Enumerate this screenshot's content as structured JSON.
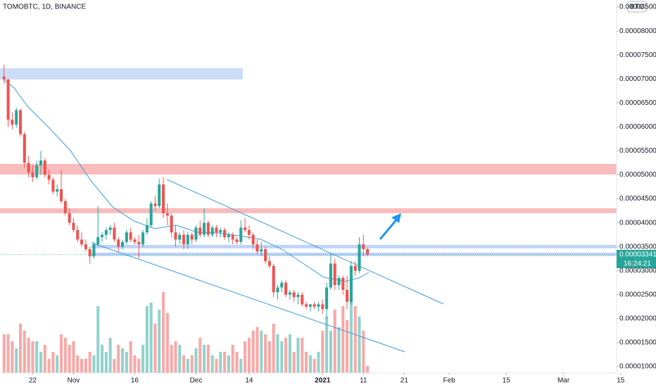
{
  "chart_data": {
    "type": "candlestick",
    "title": "TOMOBTC, 1D, BINANCE",
    "currency": "BTC",
    "countdown": "16:24:21",
    "up_color": "#26a69a",
    "down_color": "#ef5350",
    "xlim": [
      -1,
      150
    ],
    "xticks": [
      {
        "value": 7,
        "label": "22"
      },
      {
        "value": 17,
        "label": "Nov"
      },
      {
        "value": 32,
        "label": "16"
      },
      {
        "value": 47,
        "label": "Dec"
      },
      {
        "value": 60,
        "label": "14"
      },
      {
        "value": 78,
        "label": "2021"
      },
      {
        "value": 88,
        "label": "11"
      },
      {
        "value": 98,
        "label": "21"
      },
      {
        "value": 109,
        "label": "Feb"
      },
      {
        "value": 123,
        "label": "15"
      },
      {
        "value": 137,
        "label": "Mar"
      },
      {
        "value": 151,
        "label": "15"
      }
    ],
    "ylim": [
      8.68e-06,
      8.648e-05
    ],
    "yticks": [
      {
        "value": 1e-05,
        "label": "0.00001000"
      },
      {
        "value": 1.5e-05,
        "label": "0.00001500"
      },
      {
        "value": 2e-05,
        "label": "0.00002000"
      },
      {
        "value": 2.5e-05,
        "label": "0.00002500"
      },
      {
        "value": 3e-05,
        "label": "0.00003000"
      },
      {
        "value": 3.5e-05,
        "label": "0.00003500"
      },
      {
        "value": 4e-05,
        "label": "0.00004000"
      },
      {
        "value": 4.5e-05,
        "label": "0.00004500"
      },
      {
        "value": 5e-05,
        "label": "0.00005000"
      },
      {
        "value": 5.5e-05,
        "label": "0.00005500"
      },
      {
        "value": 6e-05,
        "label": "0.00006000"
      },
      {
        "value": 6.5e-05,
        "label": "0.00006500"
      },
      {
        "value": 7e-05,
        "label": "0.00007000"
      },
      {
        "value": 7.5e-05,
        "label": "0.00007500"
      },
      {
        "value": 8e-05,
        "label": "0.00008000"
      },
      {
        "value": 8.5e-05,
        "label": "0.00008500"
      }
    ],
    "volume_lim": [
      0,
      530
    ],
    "open": [
      7.05e-05,
      6.99e-05,
      6.15e-05,
      6.05e-05,
      6.35e-05,
      5.85e-05,
      5.25e-05,
      5.05e-05,
      4.95e-05,
      5.2e-05,
      5.3e-05,
      5e-05,
      4.9e-05,
      4.65e-05,
      4.7e-05,
      4.45e-05,
      4.2e-05,
      4e-05,
      3.85e-05,
      3.65e-05,
      3.55e-05,
      3.45e-05,
      3.3e-05,
      3.55e-05,
      3.7e-05,
      3.75e-05,
      3.85e-05,
      3.9e-05,
      3.65e-05,
      3.5e-05,
      3.6e-05,
      3.8e-05,
      3.65e-05,
      3.6e-05,
      3.55e-05,
      3.8e-05,
      3.95e-05,
      4.4e-05,
      4.35e-05,
      4.8e-05,
      4.2e-05,
      4.15e-05,
      3.8e-05,
      3.65e-05,
      3.75e-05,
      3.55e-05,
      3.75e-05,
      3.65e-05,
      3.9e-05,
      3.75e-05,
      4e-05,
      3.75e-05,
      3.9e-05,
      3.8e-05,
      3.85e-05,
      3.7e-05,
      3.75e-05,
      3.65e-05,
      3.6e-05,
      3.9e-05,
      3.85e-05,
      3.75e-05,
      3.55e-05,
      3.4e-05,
      3.45e-05,
      3.2e-05,
      3.1e-05,
      2.55e-05,
      2.65e-05,
      2.75e-05,
      2.5e-05,
      2.55e-05,
      2.45e-05,
      2.5e-05,
      2.3e-05,
      2.25e-05,
      2.3e-05,
      2.25e-05,
      2.3e-05,
      2.2e-05,
      2.65e-05,
      3.15e-05,
      2.7e-05,
      2.85e-05,
      2.6e-05,
      2.35e-05,
      3.1e-05,
      3e-05,
      3.55e-05,
      3.45e-05
    ],
    "high": [
      7.3e-05,
      7e-05,
      6.3e-05,
      6.4e-05,
      6.38e-05,
      5.9e-05,
      5.4e-05,
      5.2e-05,
      5.3e-05,
      5.5e-05,
      5.35e-05,
      5.1e-05,
      4.95e-05,
      4.8e-05,
      5.1e-05,
      4.5e-05,
      4.3e-05,
      4.1e-05,
      3.95e-05,
      3.8e-05,
      3.65e-05,
      3.5e-05,
      3.6e-05,
      4.35e-05,
      3.8e-05,
      3.9e-05,
      3.95e-05,
      4e-05,
      3.7e-05,
      3.65e-05,
      3.85e-05,
      3.9e-05,
      3.7e-05,
      3.75e-05,
      3.85e-05,
      4.1e-05,
      4.45e-05,
      4.55e-05,
      4.92e-05,
      4.95e-05,
      4.4e-05,
      4.2e-05,
      3.95e-05,
      3.8e-05,
      3.85e-05,
      3.8e-05,
      3.8e-05,
      3.95e-05,
      4.05e-05,
      4.3e-05,
      4.05e-05,
      3.95e-05,
      3.95e-05,
      3.9e-05,
      3.9e-05,
      3.8e-05,
      3.8e-05,
      3.7e-05,
      4.05e-05,
      4.1e-05,
      3.95e-05,
      3.8e-05,
      3.65e-05,
      3.6e-05,
      3.5e-05,
      3.3e-05,
      3.15e-05,
      2.7e-05,
      2.8e-05,
      2.8e-05,
      2.6e-05,
      2.6e-05,
      2.55e-05,
      2.55e-05,
      2.35e-05,
      2.3e-05,
      2.35e-05,
      2.35e-05,
      2.4e-05,
      2.75e-05,
      3.35e-05,
      3.25e-05,
      2.9e-05,
      2.9e-05,
      2.9e-05,
      3.2e-05,
      3.2e-05,
      3.7e-05,
      3.75e-05,
      3.48e-05
    ],
    "low": [
      6.9e-05,
      6e-05,
      5.95e-05,
      5.98e-05,
      5.8e-05,
      5.15e-05,
      4.95e-05,
      4.85e-05,
      4.9e-05,
      5e-05,
      4.95e-05,
      4.8e-05,
      4.6e-05,
      4.55e-05,
      4.4e-05,
      4.15e-05,
      3.95e-05,
      3.8e-05,
      3.6e-05,
      3.5e-05,
      3.4e-05,
      3.15e-05,
      3.25e-05,
      3.5e-05,
      3.6e-05,
      3.65e-05,
      3.75e-05,
      3.6e-05,
      3.4e-05,
      3.45e-05,
      3.55e-05,
      3.6e-05,
      3.55e-05,
      3.25e-05,
      3.5e-05,
      3.75e-05,
      3.9e-05,
      4.25e-05,
      4.3e-05,
      4.1e-05,
      3.95e-05,
      3.7e-05,
      3.5e-05,
      3.55e-05,
      3.45e-05,
      3.45e-05,
      3.55e-05,
      3.6e-05,
      3.7e-05,
      3.7e-05,
      3.7e-05,
      3.7e-05,
      3.7e-05,
      3.7e-05,
      3.65e-05,
      3.6e-05,
      3.55e-05,
      3.55e-05,
      3.55e-05,
      3.8e-05,
      3.65e-05,
      3.45e-05,
      3.35e-05,
      3.3e-05,
      3.15e-05,
      3.05e-05,
      2.45e-05,
      2.4e-05,
      2.55e-05,
      2.45e-05,
      2.4e-05,
      2.35e-05,
      2.3e-05,
      2.25e-05,
      2.2e-05,
      2.15e-05,
      2.2e-05,
      2.15e-05,
      2.1e-05,
      2e-05,
      2.6e-05,
      2.6e-05,
      2.6e-05,
      2.5e-05,
      2.2e-05,
      2.3e-05,
      2.9e-05,
      2.95e-05,
      3.3e-05,
      3.3e-05
    ],
    "close": [
      6.99e-05,
      6.15e-05,
      6.05e-05,
      6.35e-05,
      5.85e-05,
      5.25e-05,
      5.05e-05,
      4.95e-05,
      5.2e-05,
      5.3e-05,
      5e-05,
      4.9e-05,
      4.65e-05,
      4.7e-05,
      4.45e-05,
      4.2e-05,
      4e-05,
      3.85e-05,
      3.65e-05,
      3.55e-05,
      3.45e-05,
      3.3e-05,
      3.55e-05,
      3.7e-05,
      3.75e-05,
      3.85e-05,
      3.9e-05,
      3.65e-05,
      3.5e-05,
      3.6e-05,
      3.8e-05,
      3.65e-05,
      3.6e-05,
      3.55e-05,
      3.8e-05,
      3.95e-05,
      4.4e-05,
      4.35e-05,
      4.8e-05,
      4.2e-05,
      4.15e-05,
      3.8e-05,
      3.65e-05,
      3.75e-05,
      3.55e-05,
      3.75e-05,
      3.65e-05,
      3.9e-05,
      3.75e-05,
      4e-05,
      3.75e-05,
      3.9e-05,
      3.8e-05,
      3.85e-05,
      3.7e-05,
      3.75e-05,
      3.65e-05,
      3.6e-05,
      3.9e-05,
      3.85e-05,
      3.75e-05,
      3.55e-05,
      3.4e-05,
      3.45e-05,
      3.2e-05,
      3.1e-05,
      2.55e-05,
      2.65e-05,
      2.75e-05,
      2.5e-05,
      2.55e-05,
      2.45e-05,
      2.5e-05,
      2.3e-05,
      2.25e-05,
      2.3e-05,
      2.25e-05,
      2.3e-05,
      2.2e-05,
      2.65e-05,
      3.15e-05,
      2.7e-05,
      2.85e-05,
      2.6e-05,
      2.35e-05,
      3.1e-05,
      3e-05,
      3.55e-05,
      3.45e-05,
      3.341e-05
    ],
    "volume": [
      55,
      55,
      45,
      35,
      70,
      60,
      50,
      45,
      45,
      30,
      40,
      20,
      30,
      25,
      55,
      50,
      40,
      45,
      25,
      20,
      20,
      30,
      25,
      95,
      40,
      30,
      50,
      20,
      40,
      35,
      30,
      45,
      25,
      20,
      40,
      95,
      100,
      70,
      90,
      115,
      85,
      40,
      45,
      40,
      25,
      20,
      25,
      35,
      50,
      40,
      40,
      25,
      20,
      30,
      30,
      25,
      40,
      30,
      20,
      45,
      50,
      60,
      65,
      60,
      55,
      45,
      70,
      55,
      45,
      50,
      55,
      30,
      50,
      50,
      30,
      25,
      20,
      30,
      60,
      80,
      60,
      90,
      65,
      95,
      75,
      115,
      95,
      80,
      60,
      10
    ]
  }
}
